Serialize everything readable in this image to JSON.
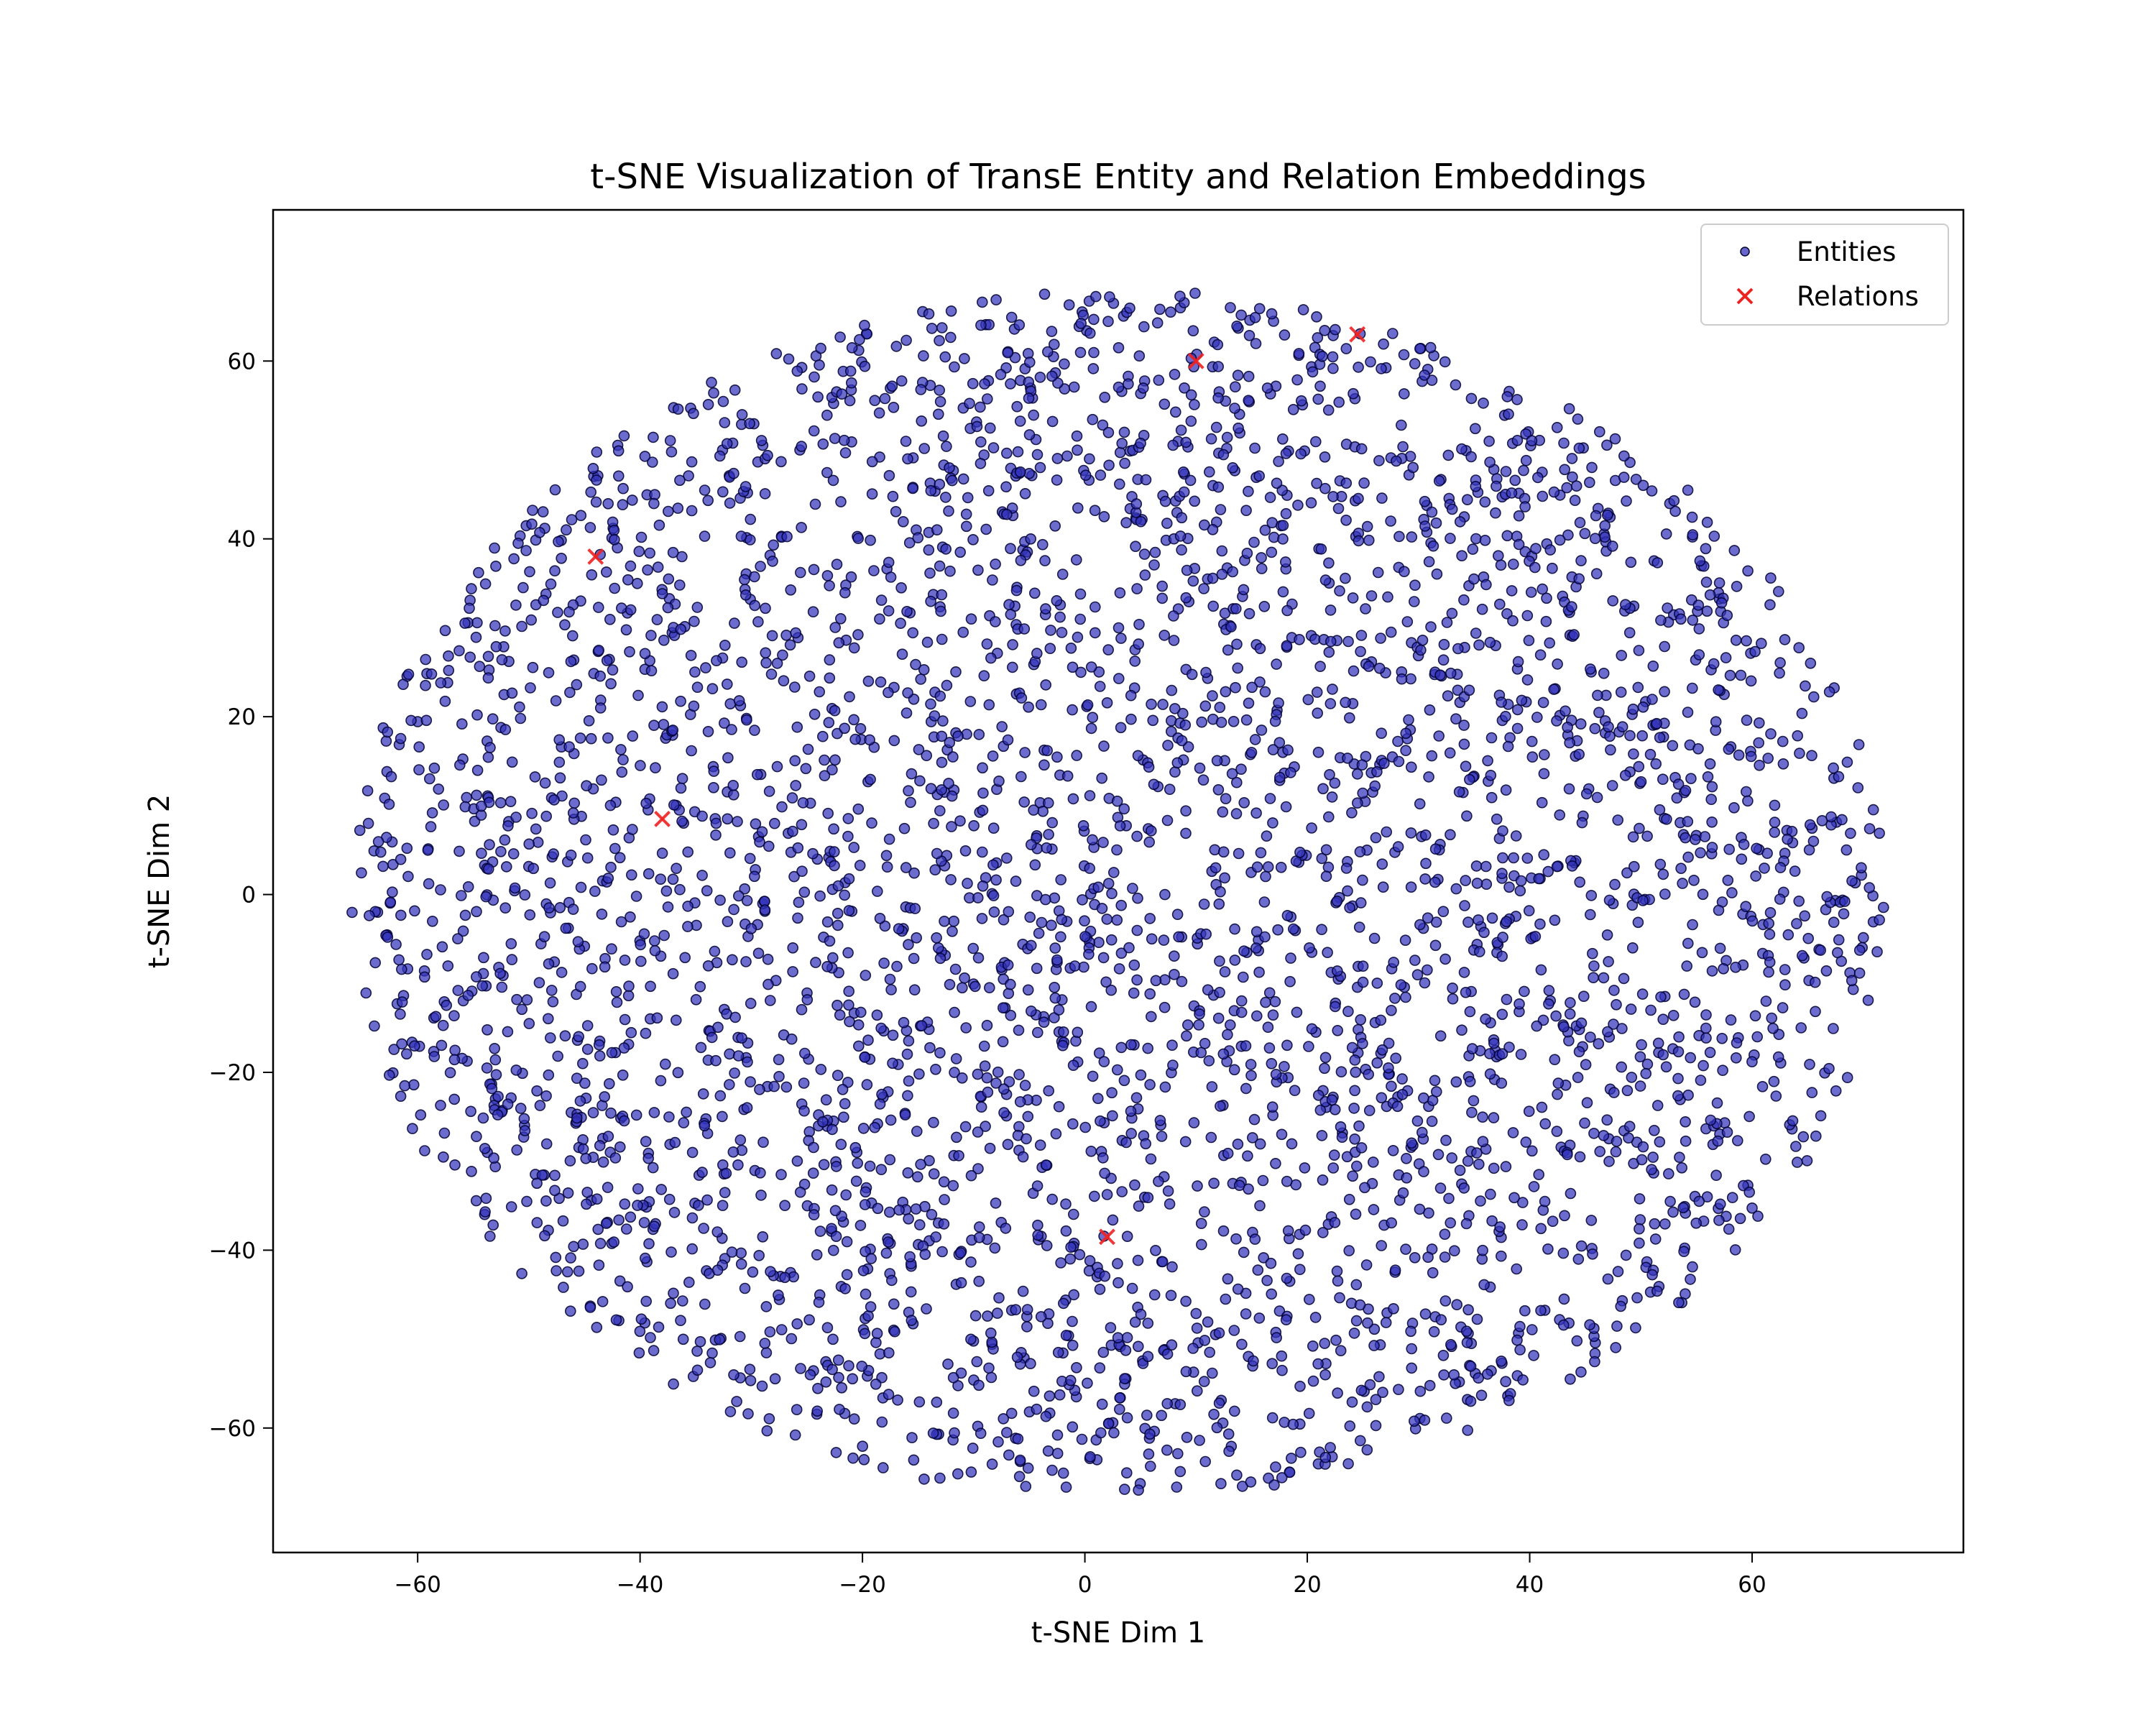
{
  "chart_data": {
    "type": "scatter",
    "title": "t-SNE Visualization of TransE Entity and Relation Embeddings",
    "xlabel": "t-SNE Dim 1",
    "ylabel": "t-SNE Dim 2",
    "xlim": [
      -73,
      79
    ],
    "ylim": [
      -74,
      77
    ],
    "xticks": [
      -60,
      -40,
      -20,
      0,
      20,
      40,
      60
    ],
    "yticks": [
      -60,
      -40,
      -20,
      0,
      20,
      40,
      60
    ],
    "grid": false,
    "legend_position": "upper right",
    "colors": {
      "entities": "#3333bb",
      "entities_edge": "#000033",
      "relations": "#ee2222"
    },
    "series": [
      {
        "name": "Entities",
        "marker": "circle",
        "approx_count": 4000,
        "distribution": "elliptical cloud spanning x about -66 to 72 and y about -67 to 70",
        "center": [
          3,
          0
        ],
        "radius": [
          69,
          68
        ]
      },
      {
        "name": "Relations",
        "marker": "x",
        "points": [
          {
            "x": -44,
            "y": 38
          },
          {
            "x": -38,
            "y": 8.5
          },
          {
            "x": 10,
            "y": 60
          },
          {
            "x": 24.5,
            "y": 63
          },
          {
            "x": 2,
            "y": -38.5
          }
        ]
      }
    ]
  }
}
